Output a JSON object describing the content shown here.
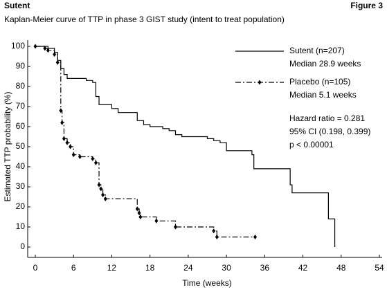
{
  "header": {
    "label": "Sutent",
    "figure": "Figure 3"
  },
  "chart_data": {
    "type": "step",
    "title": "Kaplan-Meier curve of TTP in phase 3 GIST study (intent to treat population)",
    "x_label": "Time (weeks)",
    "y_label": "Estimated TTP probability (%)",
    "xlim": [
      0,
      54
    ],
    "ylim": [
      0,
      100
    ],
    "xticks": [
      0,
      6,
      12,
      18,
      24,
      30,
      36,
      42,
      48,
      54
    ],
    "yticks": [
      0,
      10,
      20,
      30,
      40,
      50,
      60,
      70,
      80,
      90,
      100
    ],
    "series": [
      {
        "name": "Sutent (n=207)",
        "median_label": "Median 28.9  weeks",
        "color": "#000000",
        "style": "solid",
        "marker": "none",
        "x": [
          0,
          2,
          3,
          3.5,
          4,
          4.5,
          5,
          8,
          9,
          9.5,
          10,
          12,
          13,
          16,
          17,
          18,
          20,
          21,
          22,
          23,
          27,
          28,
          29,
          30,
          34,
          34.3,
          40,
          40.3,
          46,
          47
        ],
        "values": [
          100,
          99,
          97,
          93,
          89,
          86,
          84,
          83,
          82,
          75,
          71,
          69,
          67,
          63,
          61,
          60,
          59,
          58,
          56,
          55,
          54,
          53,
          52,
          48,
          46,
          39,
          31,
          27,
          14,
          0
        ]
      },
      {
        "name": "Placebo (n=105)",
        "median_label": "Median 5.1 weeks",
        "color": "#000000",
        "style": "dashdot",
        "marker": "diamond",
        "x": [
          0,
          1.5,
          2,
          3,
          3.5,
          4,
          4.2,
          4.5,
          5,
          5.5,
          6,
          7,
          9,
          9.5,
          10,
          10.3,
          10.6,
          11,
          16,
          16.3,
          16.5,
          19,
          22,
          28,
          28.5,
          34.5
        ],
        "values": [
          100,
          99,
          98,
          96,
          92,
          68,
          62,
          54,
          52,
          50,
          46,
          45,
          44,
          42,
          31,
          29,
          26,
          24,
          19,
          17,
          15,
          13,
          10,
          8,
          5,
          5
        ]
      }
    ],
    "annotations": [
      "Hazard ratio = 0.281",
      "95% CI (0.198, 0.399)",
      "p < 0.00001"
    ]
  }
}
